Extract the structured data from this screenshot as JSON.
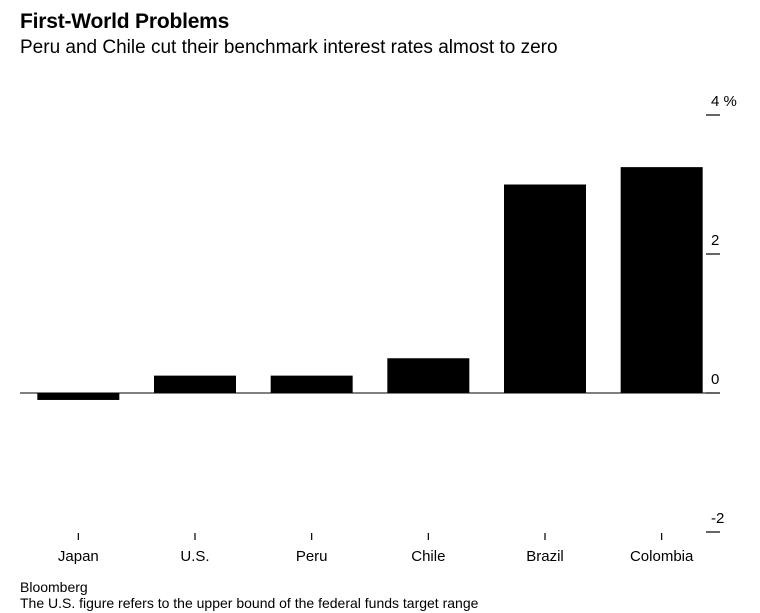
{
  "chart_data": {
    "type": "bar",
    "title": "First-World Problems",
    "subtitle": "Peru and Chile cut their benchmark interest rates almost to zero",
    "categories": [
      "Japan",
      "U.S.",
      "Peru",
      "Chile",
      "Brazil",
      "Colombia"
    ],
    "values": [
      -0.1,
      0.25,
      0.25,
      0.5,
      3.0,
      3.25
    ],
    "ylim": [
      -2,
      4
    ],
    "yticks": [
      4,
      2,
      0,
      -2
    ],
    "ytick_labels": [
      "4 %",
      "2",
      "0",
      "-2"
    ],
    "xlabel": "",
    "ylabel": "",
    "grid": false,
    "axis_side": "right",
    "color": "#000000"
  },
  "source": "Bloomberg",
  "footnote": "The U.S. figure refers to the upper bound of the federal funds target range"
}
